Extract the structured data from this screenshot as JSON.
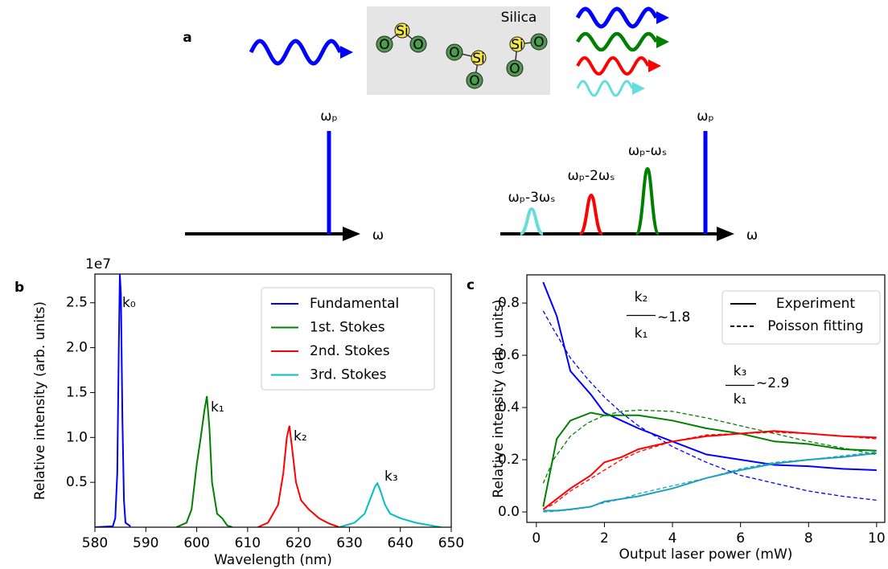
{
  "diagram": {
    "label": "a",
    "material": "Silica",
    "atoms": [
      "Si",
      "O",
      "O",
      "O",
      "Si",
      "O",
      "Si",
      "O",
      "O"
    ],
    "left_spectrum": {
      "peak": "ωₚ",
      "axis": "ω"
    },
    "right_spectrum": {
      "peaks": [
        "ωₚ-3ωₛ",
        "ωₚ-2ωₛ",
        "ωₚ-ωₛ",
        "ωₚ"
      ],
      "axis": "ω"
    }
  },
  "chart_data": [
    {
      "type": "line",
      "panel": "b",
      "offset_label": "1e7",
      "xlabel": "Wavelength (nm)",
      "ylabel": "Relative intensity (arb. units)",
      "xlim": [
        580,
        650
      ],
      "ylim": [
        0,
        2.82
      ],
      "xticks": [
        580,
        590,
        600,
        610,
        620,
        630,
        640,
        650
      ],
      "yticks": [
        0.5,
        {
          "value": 1,
          "label": "1.0"
        },
        1.5,
        {
          "value": 2,
          "label": "2.0"
        },
        2.5
      ],
      "legend": "upper right",
      "annotations": [
        "k₀",
        "k₁",
        "k₂",
        "k₃"
      ],
      "series": [
        {
          "name": "Fundamental",
          "color": "#0000ff",
          "x": [
            580,
            583.5,
            584,
            584.4,
            584.7,
            584.9,
            585.1,
            585.4,
            585.7,
            586,
            587
          ],
          "values": [
            0,
            0.01,
            0.1,
            0.6,
            2.0,
            2.82,
            2.6,
            1.2,
            0.3,
            0.05,
            0.01
          ]
        },
        {
          "name": "1st. Stokes",
          "color": "#008000",
          "x": [
            596,
            598,
            599,
            600,
            600.8,
            601.5,
            602,
            602.5,
            603,
            604,
            605,
            606,
            607
          ],
          "values": [
            0,
            0.05,
            0.2,
            0.7,
            1.0,
            1.3,
            1.46,
            1.1,
            0.5,
            0.15,
            0.1,
            0.02,
            0
          ]
        },
        {
          "name": "2nd. Stokes",
          "color": "#ff0000",
          "x": [
            612,
            614,
            616,
            617,
            617.7,
            618.2,
            618.7,
            619.5,
            620.5,
            622,
            624,
            626,
            628
          ],
          "values": [
            0,
            0.05,
            0.25,
            0.6,
            1.0,
            1.13,
            0.9,
            0.5,
            0.3,
            0.2,
            0.1,
            0.04,
            0
          ]
        },
        {
          "name": "3rd. Stokes",
          "color": "#00bfbf",
          "x": [
            628,
            631,
            633,
            634,
            635,
            635.5,
            636,
            637,
            638,
            640,
            643,
            646,
            648
          ],
          "values": [
            0,
            0.05,
            0.15,
            0.3,
            0.45,
            0.49,
            0.42,
            0.25,
            0.15,
            0.1,
            0.05,
            0.02,
            0
          ]
        }
      ]
    },
    {
      "type": "line",
      "panel": "c",
      "xlabel": "Output laser power (mW)",
      "ylabel": "Relative intensity (arb. units)",
      "xlim": [
        -0.28,
        10.24
      ],
      "ylim": [
        -0.04,
        0.908
      ],
      "xticks": [
        0,
        2,
        4,
        6,
        8,
        10
      ],
      "yticks": [
        {
          "value": 0,
          "label": "0.0"
        },
        0.2,
        0.4,
        0.6,
        0.8
      ],
      "legend": "upper right",
      "legend_entries": [
        {
          "label": "Experiment",
          "dash": false
        },
        {
          "label": "Poisson fitting",
          "dash": true
        }
      ],
      "annotations": [
        {
          "numerator": "k₂",
          "denominator": "k₁",
          "text": "~1.8"
        },
        {
          "numerator": "k₃",
          "denominator": "k₁",
          "text": "~2.9"
        }
      ],
      "series": [
        {
          "color": "#0000ff",
          "dash": false,
          "x": [
            0.2,
            0.6,
            1,
            1.6,
            2,
            2.5,
            3,
            4,
            5,
            6,
            7,
            8,
            9,
            10
          ],
          "values": [
            0.88,
            0.75,
            0.54,
            0.45,
            0.38,
            0.35,
            0.32,
            0.27,
            0.22,
            0.2,
            0.18,
            0.175,
            0.165,
            0.16
          ]
        },
        {
          "color": "#008000",
          "dash": false,
          "x": [
            0.2,
            0.6,
            1,
            1.6,
            2,
            2.5,
            3,
            4,
            5,
            6,
            7,
            8,
            9,
            10
          ],
          "values": [
            0.02,
            0.28,
            0.35,
            0.38,
            0.37,
            0.37,
            0.37,
            0.35,
            0.32,
            0.3,
            0.27,
            0.26,
            0.24,
            0.235
          ]
        },
        {
          "color": "#ff0000",
          "dash": false,
          "x": [
            0.2,
            0.6,
            1,
            1.6,
            2,
            2.5,
            3,
            4,
            5,
            6,
            7,
            8,
            9,
            10
          ],
          "values": [
            0.01,
            0.05,
            0.09,
            0.14,
            0.19,
            0.21,
            0.24,
            0.27,
            0.29,
            0.3,
            0.31,
            0.3,
            0.29,
            0.285
          ]
        },
        {
          "color": "#1f9fbf",
          "dash": false,
          "x": [
            0.2,
            0.6,
            1,
            1.6,
            2,
            2.5,
            3,
            4,
            5,
            6,
            7,
            8,
            9,
            10
          ],
          "values": [
            0.005,
            0.005,
            0.01,
            0.02,
            0.04,
            0.05,
            0.06,
            0.09,
            0.13,
            0.16,
            0.185,
            0.2,
            0.21,
            0.225
          ]
        },
        {
          "color": "#0000ff",
          "dash": true,
          "x": [
            0.2,
            0.5,
            1,
            1.5,
            2,
            2.5,
            3,
            4,
            5,
            6,
            7,
            8,
            9,
            10
          ],
          "values": [
            0.77,
            0.7,
            0.59,
            0.51,
            0.44,
            0.38,
            0.33,
            0.25,
            0.19,
            0.14,
            0.11,
            0.08,
            0.06,
            0.045
          ]
        },
        {
          "color": "#008000",
          "dash": true,
          "x": [
            0.2,
            0.5,
            1,
            1.5,
            2,
            2.5,
            3,
            4,
            5,
            6,
            7,
            8,
            9,
            10
          ],
          "values": [
            0.11,
            0.2,
            0.29,
            0.34,
            0.37,
            0.385,
            0.39,
            0.385,
            0.36,
            0.33,
            0.3,
            0.27,
            0.245,
            0.22
          ]
        },
        {
          "color": "#ff0000",
          "dash": true,
          "x": [
            0.2,
            0.5,
            1,
            1.5,
            2,
            2.5,
            3,
            4,
            5,
            6,
            7,
            8,
            9,
            10
          ],
          "values": [
            0.01,
            0.03,
            0.08,
            0.12,
            0.16,
            0.2,
            0.23,
            0.27,
            0.295,
            0.3,
            0.305,
            0.3,
            0.29,
            0.28
          ]
        },
        {
          "color": "#1f9fbf",
          "dash": true,
          "x": [
            0.2,
            0.5,
            1,
            1.5,
            2,
            2.5,
            3,
            4,
            5,
            6,
            7,
            8,
            9,
            10
          ],
          "values": [
            0,
            0.002,
            0.008,
            0.018,
            0.035,
            0.05,
            0.07,
            0.1,
            0.13,
            0.165,
            0.19,
            0.2,
            0.215,
            0.23
          ]
        }
      ]
    }
  ]
}
